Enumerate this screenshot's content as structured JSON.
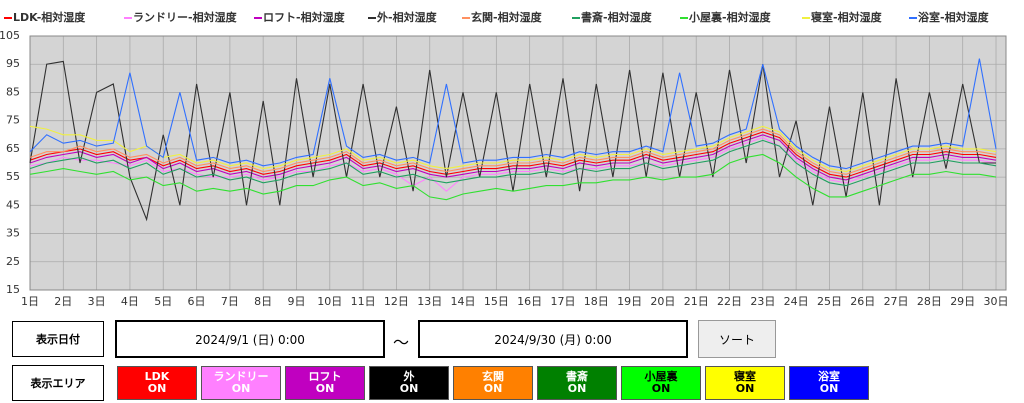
{
  "chart_data": {
    "type": "line",
    "x": [
      1,
      1.5,
      2,
      2.5,
      3,
      3.5,
      4,
      4.5,
      5,
      5.5,
      6,
      6.5,
      7,
      7.5,
      8,
      8.5,
      9,
      9.5,
      10,
      10.5,
      11,
      11.5,
      12,
      12.5,
      13,
      13.5,
      14,
      14.5,
      15,
      15.5,
      16,
      16.5,
      17,
      17.5,
      18,
      18.5,
      19,
      19.5,
      20,
      20.5,
      21,
      21.5,
      22,
      22.5,
      23,
      23.5,
      24,
      24.5,
      25,
      25.5,
      26,
      26.5,
      27,
      27.5,
      28,
      28.5,
      29,
      29.5,
      30
    ],
    "xlim": [
      1,
      30.3
    ],
    "xticks": [
      {
        "value": 1,
        "label": "1日"
      },
      {
        "value": 2,
        "label": "2日"
      },
      {
        "value": 3,
        "label": "3日"
      },
      {
        "value": 4,
        "label": "4日"
      },
      {
        "value": 5,
        "label": "5日"
      },
      {
        "value": 6,
        "label": "6日"
      },
      {
        "value": 7,
        "label": "7日"
      },
      {
        "value": 8,
        "label": "8日"
      },
      {
        "value": 9,
        "label": "9日"
      },
      {
        "value": 10,
        "label": "10日"
      },
      {
        "value": 11,
        "label": "11日"
      },
      {
        "value": 12,
        "label": "12日"
      },
      {
        "value": 13,
        "label": "13日"
      },
      {
        "value": 14,
        "label": "14日"
      },
      {
        "value": 15,
        "label": "15日"
      },
      {
        "value": 16,
        "label": "16日"
      },
      {
        "value": 17,
        "label": "17日"
      },
      {
        "value": 18,
        "label": "18日"
      },
      {
        "value": 19,
        "label": "19日"
      },
      {
        "value": 20,
        "label": "20日"
      },
      {
        "value": 21,
        "label": "21日"
      },
      {
        "value": 22,
        "label": "22日"
      },
      {
        "value": 23,
        "label": "23日"
      },
      {
        "value": 24,
        "label": "24日"
      },
      {
        "value": 25,
        "label": "25日"
      },
      {
        "value": 26,
        "label": "26日"
      },
      {
        "value": 27,
        "label": "27日"
      },
      {
        "value": 28,
        "label": "28日"
      },
      {
        "value": 29,
        "label": "29日"
      },
      {
        "value": 30,
        "label": "30日"
      }
    ],
    "ylim": [
      15,
      105
    ],
    "yticks": [
      15,
      25,
      35,
      45,
      55,
      65,
      75,
      85,
      95,
      105
    ],
    "grid": true,
    "legend": "top",
    "series": [
      {
        "name": "LDK-相対湿度",
        "color": "#ff0000",
        "values": [
          61,
          63,
          64,
          65,
          63,
          64,
          61,
          62,
          59,
          61,
          58,
          59,
          57,
          58,
          56,
          57,
          59,
          60,
          61,
          63,
          59,
          60,
          58,
          59,
          57,
          56,
          57,
          58,
          58,
          59,
          59,
          60,
          59,
          61,
          60,
          61,
          61,
          63,
          61,
          62,
          63,
          64,
          67,
          69,
          71,
          69,
          63,
          59,
          56,
          55,
          57,
          59,
          61,
          63,
          63,
          64,
          63,
          63,
          62
        ]
      },
      {
        "name": "ランドリー-相対湿度",
        "color": "#ff80ff",
        "values": [
          59,
          60,
          62,
          61,
          61,
          60,
          59,
          61,
          57,
          58,
          56,
          55,
          55,
          56,
          54,
          55,
          57,
          57,
          59,
          60,
          57,
          58,
          56,
          52,
          55,
          50,
          55,
          56,
          56,
          57,
          57,
          58,
          57,
          58,
          58,
          59,
          59,
          60,
          59,
          60,
          61,
          62,
          65,
          67,
          69,
          66,
          61,
          57,
          54,
          53,
          55,
          57,
          59,
          61,
          61,
          62,
          61,
          61,
          60
        ]
      },
      {
        "name": "ロフト-相対湿度",
        "color": "#c000c0",
        "values": [
          60,
          62,
          63,
          64,
          62,
          63,
          60,
          62,
          58,
          60,
          57,
          58,
          56,
          57,
          55,
          56,
          58,
          59,
          60,
          62,
          58,
          59,
          57,
          58,
          56,
          55,
          56,
          57,
          57,
          58,
          58,
          59,
          58,
          60,
          59,
          60,
          60,
          62,
          60,
          61,
          62,
          63,
          66,
          68,
          70,
          68,
          62,
          58,
          55,
          54,
          56,
          58,
          60,
          62,
          62,
          63,
          62,
          62,
          61
        ]
      },
      {
        "name": "外-相対湿度",
        "color": "#303030",
        "values": [
          60,
          95,
          96,
          60,
          85,
          88,
          55,
          40,
          70,
          45,
          88,
          55,
          85,
          45,
          82,
          45,
          90,
          55,
          88,
          55,
          88,
          55,
          80,
          50,
          93,
          55,
          85,
          55,
          85,
          50,
          88,
          55,
          90,
          50,
          88,
          55,
          93,
          55,
          92,
          55,
          85,
          55,
          93,
          60,
          95,
          55,
          75,
          45,
          80,
          48,
          85,
          45,
          90,
          55,
          85,
          58,
          88,
          60,
          60
        ]
      },
      {
        "name": "玄関-相対湿度",
        "color": "#ff9060",
        "values": [
          62,
          64,
          64,
          66,
          64,
          65,
          62,
          63,
          60,
          62,
          59,
          60,
          58,
          59,
          57,
          58,
          60,
          61,
          62,
          64,
          60,
          61,
          59,
          60,
          58,
          57,
          58,
          59,
          59,
          60,
          60,
          61,
          60,
          62,
          61,
          62,
          62,
          64,
          62,
          63,
          64,
          65,
          68,
          70,
          72,
          70,
          64,
          60,
          57,
          56,
          58,
          60,
          62,
          64,
          64,
          65,
          64,
          64,
          63
        ]
      },
      {
        "name": "書斎-相対湿度",
        "color": "#20a060",
        "values": [
          58,
          60,
          61,
          62,
          60,
          61,
          58,
          60,
          56,
          58,
          55,
          56,
          54,
          55,
          53,
          54,
          56,
          57,
          58,
          60,
          56,
          57,
          55,
          56,
          54,
          53,
          54,
          55,
          55,
          56,
          56,
          57,
          56,
          58,
          57,
          58,
          58,
          60,
          58,
          59,
          60,
          61,
          64,
          66,
          68,
          66,
          60,
          56,
          53,
          52,
          54,
          56,
          58,
          60,
          60,
          61,
          60,
          60,
          59
        ]
      },
      {
        "name": "小屋裏-相対湿度",
        "color": "#30e030",
        "values": [
          56,
          57,
          58,
          57,
          56,
          57,
          54,
          55,
          52,
          53,
          50,
          51,
          50,
          51,
          49,
          50,
          52,
          52,
          54,
          55,
          52,
          53,
          51,
          52,
          48,
          47,
          49,
          50,
          51,
          50,
          51,
          52,
          52,
          53,
          53,
          54,
          54,
          55,
          54,
          55,
          55,
          56,
          60,
          62,
          63,
          60,
          55,
          51,
          48,
          48,
          50,
          52,
          54,
          56,
          56,
          57,
          56,
          56,
          55
        ]
      },
      {
        "name": "寝室-相対湿度",
        "color": "#f0f040",
        "values": [
          73,
          72,
          70,
          70,
          68,
          68,
          64,
          66,
          62,
          63,
          60,
          61,
          59,
          60,
          58,
          59,
          61,
          62,
          63,
          65,
          61,
          62,
          60,
          61,
          59,
          58,
          59,
          60,
          60,
          61,
          61,
          62,
          61,
          63,
          62,
          63,
          63,
          65,
          63,
          64,
          65,
          66,
          69,
          71,
          73,
          71,
          65,
          61,
          58,
          57,
          59,
          61,
          63,
          65,
          65,
          66,
          65,
          65,
          64
        ]
      },
      {
        "name": "浴室-相対湿度",
        "color": "#3070ff",
        "values": [
          64,
          70,
          67,
          68,
          66,
          67,
          92,
          66,
          62,
          85,
          61,
          62,
          60,
          61,
          59,
          60,
          62,
          63,
          90,
          66,
          62,
          63,
          61,
          62,
          60,
          88,
          60,
          61,
          61,
          62,
          62,
          63,
          62,
          64,
          63,
          64,
          64,
          66,
          64,
          92,
          66,
          67,
          70,
          72,
          95,
          72,
          66,
          62,
          59,
          58,
          60,
          62,
          64,
          66,
          66,
          67,
          66,
          97,
          65
        ]
      }
    ]
  },
  "controls": {
    "date_label": "表示日付",
    "start": "2024/9/1 (日) 0:00",
    "separator": "～",
    "end": "2024/9/30 (月) 0:00",
    "sort": "ソート",
    "area_label": "表示エリア",
    "buttons": [
      {
        "name": "LDK",
        "state": "ON",
        "color": "#ff0000",
        "text_color": "#ffffff"
      },
      {
        "name": "ランドリー",
        "state": "ON",
        "color": "#ff80ff",
        "text_color": "#ffffff"
      },
      {
        "name": "ロフト",
        "state": "ON",
        "color": "#c000c0",
        "text_color": "#ffffff"
      },
      {
        "name": "外",
        "state": "ON",
        "color": "#000000",
        "text_color": "#ffffff"
      },
      {
        "name": "玄関",
        "state": "ON",
        "color": "#ff8000",
        "text_color": "#ffffff"
      },
      {
        "name": "書斎",
        "state": "ON",
        "color": "#008000",
        "text_color": "#ffffff"
      },
      {
        "name": "小屋裏",
        "state": "ON",
        "color": "#00ff00",
        "text_color": "#000000"
      },
      {
        "name": "寝室",
        "state": "ON",
        "color": "#ffff00",
        "text_color": "#000000"
      },
      {
        "name": "浴室",
        "state": "ON",
        "color": "#0000ff",
        "text_color": "#ffffff"
      }
    ]
  }
}
